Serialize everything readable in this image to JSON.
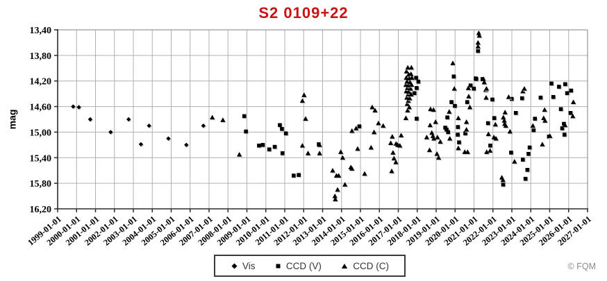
{
  "footer": {
    "copyright": "© FQM"
  },
  "chart_data": {
    "type": "scatter",
    "title": "S2 0109+22",
    "title_color": "#cc1111",
    "xlabel": "",
    "ylabel": "mag",
    "grid": true,
    "x_axis": {
      "min": 1999,
      "max": 2027,
      "step": 1,
      "tick_labels": [
        "1999-01-01",
        "2000-01-01",
        "2001-01-01",
        "2002-01-01",
        "2003-01-01",
        "2004-01-01",
        "2005-01-01",
        "2006-01-01",
        "2007-01-01",
        "2008-01-01",
        "2009-01-01",
        "2010-01-01",
        "2011-01-01",
        "2012-01-01",
        "2013-01-01",
        "2014-01-01",
        "2015-01-01",
        "2016-01-01",
        "2017-01-01",
        "2018-01-01",
        "2019-01-01",
        "2020-01-01",
        "2021-01-01",
        "2022-01-01",
        "2023-01-01",
        "2024-01-01",
        "2025-01-01",
        "2026-01-01",
        "2027-01-01"
      ]
    },
    "y_axis": {
      "min": 13.4,
      "max": 16.2,
      "step": 0.4,
      "inverted": true,
      "tick_labels": [
        "13,40",
        "13,80",
        "14,20",
        "14,60",
        "15,00",
        "15,40",
        "15,80",
        "16,20"
      ]
    },
    "legend": {
      "position": "bottom",
      "entries": [
        "Vis",
        "CCD (V)",
        "CCD (C)"
      ]
    },
    "series": [
      {
        "name": "Vis",
        "marker": "diamond",
        "color": "#000000",
        "points": [
          [
            1999.82,
            14.6
          ],
          [
            2000.12,
            14.61
          ],
          [
            2000.72,
            14.8
          ],
          [
            2001.8,
            15.0
          ],
          [
            2002.75,
            14.8
          ],
          [
            2003.4,
            15.19
          ],
          [
            2003.83,
            14.9
          ],
          [
            2004.85,
            15.1
          ],
          [
            2005.8,
            15.2
          ],
          [
            2006.7,
            14.9
          ]
        ]
      },
      {
        "name": "CCD (V)",
        "marker": "square",
        "color": "#000000",
        "points": [
          [
            2008.86,
            14.75
          ],
          [
            2008.95,
            14.99
          ],
          [
            2009.64,
            15.21
          ],
          [
            2009.84,
            15.2
          ],
          [
            2010.18,
            15.27
          ],
          [
            2010.47,
            15.23
          ],
          [
            2010.74,
            14.89
          ],
          [
            2010.85,
            14.95
          ],
          [
            2010.88,
            15.33
          ],
          [
            2011.06,
            15.02
          ],
          [
            2011.47,
            15.68
          ],
          [
            2011.74,
            15.67
          ],
          [
            2012.8,
            15.19
          ],
          [
            2014.94,
            14.91
          ],
          [
            2017.85,
            14.39
          ],
          [
            2017.94,
            14.15
          ],
          [
            2017.97,
            14.31
          ],
          [
            2017.97,
            14.79
          ],
          [
            2018.06,
            14.21
          ],
          [
            2019.48,
            14.93
          ],
          [
            2019.55,
            14.96
          ],
          [
            2019.59,
            14.77
          ],
          [
            2019.63,
            15.0
          ],
          [
            2019.81,
            14.53
          ],
          [
            2019.93,
            14.13
          ],
          [
            2019.99,
            14.59
          ],
          [
            2020.14,
            15.04
          ],
          [
            2020.15,
            14.92
          ],
          [
            2020.21,
            15.16
          ],
          [
            2020.54,
            15.02
          ],
          [
            2020.64,
            14.53
          ],
          [
            2020.82,
            14.27
          ],
          [
            2020.99,
            14.32
          ],
          [
            2021.09,
            14.16
          ],
          [
            2021.12,
            14.17
          ],
          [
            2021.21,
            13.73
          ],
          [
            2021.45,
            14.17
          ],
          [
            2021.74,
            14.86
          ],
          [
            2021.86,
            15.21
          ],
          [
            2021.97,
            14.49
          ],
          [
            2022.07,
            14.78
          ],
          [
            2022.54,
            15.82
          ],
          [
            2022.96,
            15.32
          ],
          [
            2022.99,
            14.48
          ],
          [
            2023.21,
            14.7
          ],
          [
            2023.54,
            14.47
          ],
          [
            2023.58,
            15.43
          ],
          [
            2023.72,
            15.73
          ],
          [
            2023.82,
            15.59
          ],
          [
            2023.88,
            15.34
          ],
          [
            2023.94,
            15.24
          ],
          [
            2024.15,
            14.97
          ],
          [
            2024.22,
            14.79
          ],
          [
            2024.52,
            14.46
          ],
          [
            2024.96,
            15.07
          ],
          [
            2025.09,
            14.24
          ],
          [
            2025.19,
            14.45
          ],
          [
            2025.49,
            14.29
          ],
          [
            2025.59,
            14.64
          ],
          [
            2025.66,
            14.94
          ],
          [
            2025.75,
            14.87
          ],
          [
            2025.78,
            15.04
          ],
          [
            2025.82,
            14.25
          ],
          [
            2025.92,
            14.39
          ],
          [
            2026.1,
            14.7
          ],
          [
            2026.13,
            14.35
          ]
        ]
      },
      {
        "name": "CCD (C)",
        "marker": "triangle",
        "color": "#000000",
        "points": [
          [
            2007.17,
            14.77
          ],
          [
            2007.73,
            14.81
          ],
          [
            2008.6,
            15.35
          ],
          [
            2011.93,
            14.51
          ],
          [
            2011.93,
            15.21
          ],
          [
            2012.02,
            14.42
          ],
          [
            2012.1,
            14.79
          ],
          [
            2012.23,
            15.33
          ],
          [
            2012.84,
            15.2
          ],
          [
            2012.84,
            15.33
          ],
          [
            2013.53,
            15.6
          ],
          [
            2013.65,
            16.0
          ],
          [
            2013.67,
            16.05
          ],
          [
            2013.73,
            15.68
          ],
          [
            2013.79,
            15.9
          ],
          [
            2013.85,
            15.68
          ],
          [
            2013.96,
            15.31
          ],
          [
            2014.06,
            15.4
          ],
          [
            2014.18,
            15.82
          ],
          [
            2014.49,
            15.55
          ],
          [
            2014.55,
            15.57
          ],
          [
            2014.55,
            14.98
          ],
          [
            2014.77,
            14.94
          ],
          [
            2014.85,
            15.26
          ],
          [
            2015.22,
            15.65
          ],
          [
            2015.56,
            15.24
          ],
          [
            2015.62,
            14.61
          ],
          [
            2015.72,
            15.0
          ],
          [
            2015.77,
            14.66
          ],
          [
            2015.95,
            14.86
          ],
          [
            2016.2,
            14.9
          ],
          [
            2016.6,
            15.17
          ],
          [
            2016.65,
            15.61
          ],
          [
            2016.68,
            15.07
          ],
          [
            2016.72,
            15.32
          ],
          [
            2016.77,
            15.41
          ],
          [
            2016.87,
            15.47
          ],
          [
            2016.88,
            15.18
          ],
          [
            2016.97,
            15.2
          ],
          [
            2017.08,
            15.21
          ],
          [
            2017.15,
            15.05
          ],
          [
            2017.4,
            14.26
          ],
          [
            2017.4,
            14.78
          ],
          [
            2017.42,
            14.15
          ],
          [
            2017.42,
            14.36
          ],
          [
            2017.43,
            14.05
          ],
          [
            2017.45,
            14.46
          ],
          [
            2017.46,
            14.21
          ],
          [
            2017.47,
            14.56
          ],
          [
            2017.48,
            14.31
          ],
          [
            2017.49,
            14.66
          ],
          [
            2017.5,
            13.99
          ],
          [
            2017.52,
            14.41
          ],
          [
            2017.53,
            14.51
          ],
          [
            2017.54,
            14.27
          ],
          [
            2017.55,
            14.1
          ],
          [
            2017.56,
            14.37
          ],
          [
            2017.58,
            14.16
          ],
          [
            2017.58,
            14.61
          ],
          [
            2017.6,
            14.47
          ],
          [
            2017.62,
            14.22
          ],
          [
            2017.65,
            14.32
          ],
          [
            2017.67,
            14.09
          ],
          [
            2017.68,
            14.41
          ],
          [
            2017.69,
            13.99
          ],
          [
            2017.7,
            14.26
          ],
          [
            2017.72,
            14.15
          ],
          [
            2018.5,
            15.08
          ],
          [
            2018.65,
            15.28
          ],
          [
            2018.68,
            14.89
          ],
          [
            2018.7,
            14.64
          ],
          [
            2018.77,
            15.01
          ],
          [
            2018.83,
            15.06
          ],
          [
            2018.86,
            14.65
          ],
          [
            2018.88,
            15.1
          ],
          [
            2018.97,
            14.84
          ],
          [
            2019.04,
            15.34
          ],
          [
            2019.07,
            15.08
          ],
          [
            2019.13,
            15.4
          ],
          [
            2019.22,
            15.15
          ],
          [
            2019.69,
            14.68
          ],
          [
            2019.72,
            15.1
          ],
          [
            2019.88,
            13.92
          ],
          [
            2019.96,
            14.32
          ],
          [
            2020.17,
            14.78
          ],
          [
            2020.17,
            15.25
          ],
          [
            2020.51,
            15.31
          ],
          [
            2020.6,
            14.84
          ],
          [
            2020.6,
            14.96
          ],
          [
            2020.66,
            15.31
          ],
          [
            2020.7,
            14.31
          ],
          [
            2020.72,
            14.44
          ],
          [
            2020.78,
            14.61
          ],
          [
            2021.21,
            13.6
          ],
          [
            2021.21,
            13.66
          ],
          [
            2021.25,
            13.45
          ],
          [
            2021.28,
            13.49
          ],
          [
            2021.5,
            14.17
          ],
          [
            2021.54,
            14.22
          ],
          [
            2021.62,
            14.34
          ],
          [
            2021.64,
            14.46
          ],
          [
            2021.66,
            14.32
          ],
          [
            2021.67,
            15.31
          ],
          [
            2021.76,
            15.03
          ],
          [
            2021.85,
            15.29
          ],
          [
            2022.05,
            15.08
          ],
          [
            2022.13,
            14.88
          ],
          [
            2022.16,
            15.1
          ],
          [
            2022.47,
            15.71
          ],
          [
            2022.53,
            15.75
          ],
          [
            2022.55,
            14.77
          ],
          [
            2022.6,
            14.82
          ],
          [
            2022.62,
            14.87
          ],
          [
            2022.64,
            14.69
          ],
          [
            2022.68,
            14.9
          ],
          [
            2022.83,
            14.45
          ],
          [
            2022.9,
            14.99
          ],
          [
            2023.14,
            15.46
          ],
          [
            2023.58,
            14.36
          ],
          [
            2023.66,
            14.32
          ],
          [
            2024.11,
            14.9
          ],
          [
            2024.61,
            15.19
          ],
          [
            2024.68,
            14.78
          ],
          [
            2024.73,
            14.65
          ],
          [
            2024.75,
            14.82
          ],
          [
            2025.01,
            15.06
          ],
          [
            2025.81,
            14.89
          ],
          [
            2026.22,
            14.75
          ],
          [
            2026.25,
            14.53
          ]
        ]
      }
    ]
  }
}
